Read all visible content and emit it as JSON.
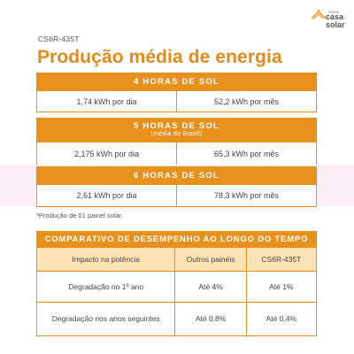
{
  "model": "CS6R-435T",
  "logo": {
    "brand_top": "nossa",
    "brand_casa": "casa",
    "brand_solar": "solar"
  },
  "title": "Produção média de energia",
  "sun_blocks": [
    {
      "header": "4 HORAS DE SOL",
      "subheader": "",
      "per_day": "1,74 kWh por dia",
      "per_month": "52,2 kWh por mês"
    },
    {
      "header": "5 HORAS DE SOL",
      "subheader": "(média do Brasil)",
      "per_day": "2,175 kWh por dia",
      "per_month": "65,3 kWh por mês"
    },
    {
      "header": "6 HORAS DE SOL",
      "subheader": "",
      "per_day": "2,61 kWh por dia",
      "per_month": "78,3 kWh por mês"
    }
  ],
  "footnote": "*Produção de 01 painel solar.",
  "comparison": {
    "title": "COMPARATIVO DE DESEMPENHO AO LONGO DO TEMPO",
    "columns": [
      "Impacto na potência",
      "Outros painéis",
      "CS6R-435T"
    ],
    "rows": [
      [
        "Degradação no 1º ano",
        "Até 4%",
        "Até 1%"
      ],
      [
        "Degradação nos anos seguintes",
        "Até 0,8%",
        "Até 0,4%"
      ]
    ]
  },
  "colors": {
    "accent": "#e8901c",
    "title": "#e28a1a",
    "table_header": "#fbe3b5",
    "band": "#fbeef6"
  }
}
